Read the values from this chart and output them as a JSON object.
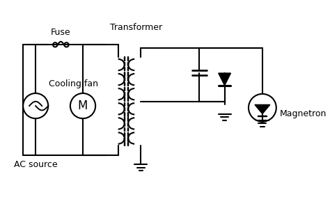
{
  "title": "",
  "bg_color": "#ffffff",
  "line_color": "#000000",
  "line_width": 1.5,
  "labels": {
    "fuse": "Fuse",
    "transformer": "Transformer",
    "cooling_fan": "Cooling fan",
    "ac_source": "AC source",
    "magnetron": "Magnetron"
  }
}
